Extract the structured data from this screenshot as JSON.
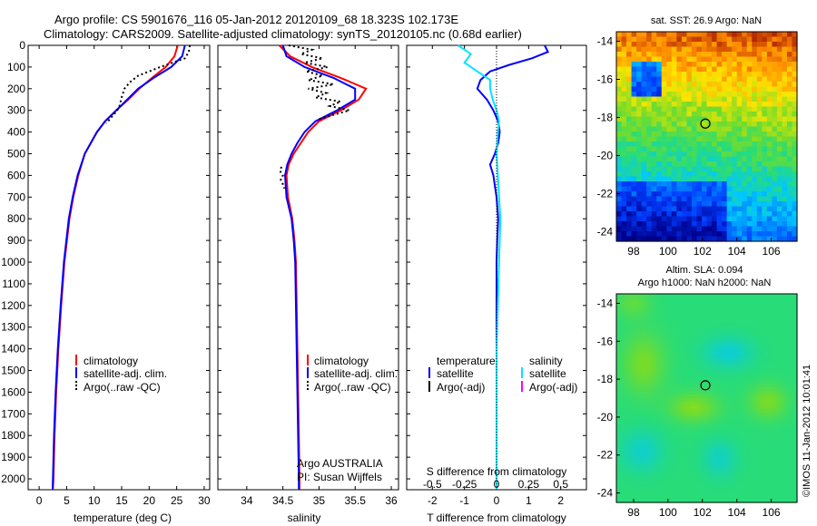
{
  "header": {
    "line1": "Argo profile: CS 5901676_116 05-Jan-2012 20120109_68 18.323S 102.173E",
    "line2": "Climatology: CARS2009. Satellite-adjusted climatology: synTS_20120105.nc (0.68d earlier)"
  },
  "colors": {
    "climatology": "#ff0000",
    "satellite": "#0000ff",
    "argo": "#000000",
    "s_satellite": "#00e5ff",
    "s_argo": "#ff00ff"
  },
  "chart_data": [
    {
      "type": "line",
      "id": "temperature",
      "xlabel": "temperature (deg C)",
      "ylabel": "",
      "xlim": [
        -2,
        31
      ],
      "ylim": [
        2050,
        0
      ],
      "xticks": [
        0,
        5,
        10,
        15,
        20,
        25,
        30
      ],
      "yticks": [
        0,
        100,
        200,
        300,
        400,
        500,
        600,
        700,
        800,
        900,
        1000,
        1100,
        1200,
        1300,
        1400,
        1500,
        1600,
        1700,
        1800,
        1900,
        2000
      ],
      "legend": [
        "climatology",
        "satellite-adj. clim.",
        "Argo(..raw -QC)"
      ],
      "series": [
        {
          "name": "climatology",
          "depth": [
            0,
            50,
            100,
            150,
            200,
            250,
            300,
            350,
            400,
            500,
            600,
            700,
            800,
            1000,
            1200,
            1400,
            1600,
            1800,
            2000,
            2050
          ],
          "values": [
            25.2,
            24.6,
            23.0,
            20.5,
            18.2,
            16.2,
            14.0,
            12.0,
            10.5,
            8.3,
            7.1,
            6.2,
            5.5,
            4.6,
            4.0,
            3.5,
            3.1,
            2.8,
            2.6,
            2.5
          ]
        },
        {
          "name": "satellite-adj. clim.",
          "depth": [
            0,
            50,
            100,
            150,
            200,
            250,
            300,
            350,
            400,
            500,
            600,
            700,
            800,
            1000,
            1200,
            1400,
            1600,
            1800,
            2000,
            2050
          ],
          "values": [
            26.5,
            26.0,
            24.0,
            20.8,
            18.0,
            16.0,
            14.0,
            12.0,
            10.5,
            8.3,
            7.0,
            6.1,
            5.4,
            4.5,
            3.9,
            3.4,
            3.0,
            2.7,
            2.5,
            2.45
          ]
        },
        {
          "name": "Argo(..raw -QC)",
          "depth": [
            0,
            30,
            60,
            100,
            140,
            170,
            200,
            240,
            280,
            300,
            330,
            360
          ],
          "values": [
            27.4,
            27.2,
            26.5,
            22.0,
            18.0,
            16.5,
            15.5,
            15.0,
            14.6,
            14.2,
            13.2,
            12.2
          ]
        }
      ]
    },
    {
      "type": "line",
      "id": "salinity",
      "xlabel": "salinity",
      "xlim": [
        33.6,
        36.1
      ],
      "ylim": [
        2050,
        0
      ],
      "xticks": [
        34,
        34.5,
        35,
        35.5,
        36
      ],
      "legend": [
        "climatology",
        "satellite-adj. clim.",
        "Argo(..raw -QC)"
      ],
      "note1": "Argo AUSTRALIA",
      "note2": "PI: Susan Wijffels",
      "series": [
        {
          "name": "climatology",
          "depth": [
            0,
            50,
            100,
            150,
            200,
            250,
            300,
            350,
            400,
            450,
            500,
            550,
            600,
            700,
            800,
            900,
            1000,
            1200,
            1400,
            1600,
            1800,
            2000,
            2050
          ],
          "values": [
            34.45,
            34.6,
            34.9,
            35.3,
            35.65,
            35.55,
            35.3,
            35.0,
            34.85,
            34.75,
            34.65,
            34.58,
            34.55,
            34.57,
            34.63,
            34.66,
            34.68,
            34.69,
            34.7,
            34.71,
            34.72,
            34.73,
            34.73
          ]
        },
        {
          "name": "satellite-adj. clim.",
          "depth": [
            0,
            50,
            100,
            150,
            200,
            250,
            300,
            350,
            400,
            450,
            500,
            550,
            600,
            700,
            800,
            900,
            1000,
            1200,
            1400,
            1600,
            1800,
            2000,
            2050
          ],
          "values": [
            34.5,
            34.55,
            34.8,
            35.2,
            35.5,
            35.5,
            35.25,
            34.95,
            34.8,
            34.7,
            34.62,
            34.56,
            34.53,
            34.55,
            34.62,
            34.65,
            34.67,
            34.68,
            34.69,
            34.7,
            34.71,
            34.72,
            34.72
          ]
        },
        {
          "name": "Argo(..raw -QC)",
          "depth": [
            0,
            20,
            40,
            60,
            80,
            100,
            120,
            140,
            160,
            180,
            200,
            220,
            240,
            260,
            280,
            300,
            320,
            340
          ],
          "values": [
            34.58,
            34.9,
            34.75,
            35.05,
            34.8,
            35.12,
            34.82,
            35.05,
            34.85,
            35.2,
            34.85,
            35.1,
            34.95,
            35.3,
            35.15,
            35.42,
            35.2,
            35.0
          ]
        },
        {
          "name": "Argo(..raw -QC) deep",
          "depth": [
            560,
            580,
            600,
            620,
            640,
            660
          ],
          "values": [
            34.48,
            34.46,
            34.5,
            34.47,
            34.5,
            34.52
          ]
        }
      ]
    },
    {
      "type": "line",
      "id": "difference",
      "xlabel": "T difference from climatology",
      "xlabel_top": "S difference from climatology",
      "xlim": [
        -2.8,
        2.8
      ],
      "ylim": [
        2050,
        0
      ],
      "xticks": [
        -2,
        -1,
        0,
        1,
        2
      ],
      "sticks_labels": [
        "-0.5",
        "-0.25",
        "0",
        "0.25",
        "0.5"
      ],
      "sticks": [
        -0.5,
        -0.25,
        0,
        0.25,
        0.5
      ],
      "s_scale": 4,
      "legend_temperature": "temperature",
      "legend_salinity": "salinity",
      "legend_items": [
        "satellite",
        "Argo(-adj)",
        "satellite",
        "Argo(-adj)"
      ],
      "series": [
        {
          "name": "T satellite",
          "depth": [
            0,
            30,
            60,
            90,
            120,
            160,
            200,
            250,
            300,
            350,
            400,
            450,
            500,
            550,
            600,
            650,
            700,
            800,
            900,
            1000,
            1200,
            1400,
            1600,
            1800,
            2000,
            2050
          ],
          "values": [
            1.5,
            1.6,
            1.1,
            0.4,
            -0.2,
            -0.5,
            -0.6,
            -0.3,
            -0.1,
            0.05,
            0.1,
            0.05,
            -0.05,
            -0.2,
            -0.1,
            -0.05,
            0.0,
            0.05,
            0.02,
            0.0,
            0.0,
            0.0,
            0.0,
            0.0,
            0.0,
            0.0
          ]
        },
        {
          "name": "S satellite",
          "depth": [
            0,
            40,
            80,
            120,
            160,
            200,
            250,
            300,
            350,
            400,
            500,
            600,
            700,
            800,
            1000,
            1200,
            1400,
            1600,
            1800,
            2000,
            2050
          ],
          "values": [
            -0.3,
            -0.2,
            -0.25,
            -0.15,
            -0.05,
            -0.05,
            -0.03,
            0.0,
            0.02,
            0.01,
            0.0,
            0.01,
            0.02,
            0.03,
            0.02,
            0.01,
            0.0,
            0.0,
            0.0,
            0.0,
            0.0
          ]
        }
      ]
    },
    {
      "type": "heatmap",
      "id": "sst",
      "title": "sat. SST: 26.9  Argo: NaN",
      "xlim": [
        97,
        107.5
      ],
      "ylim": [
        -24.5,
        -13.5
      ],
      "xticks": [
        98,
        100,
        102,
        104,
        106
      ],
      "yticks": [
        -14,
        -16,
        -18,
        -20,
        -22,
        -24
      ],
      "marker": [
        102.173,
        -18.323
      ]
    },
    {
      "type": "heatmap",
      "id": "sla",
      "title1": "Altim. SLA: 0.094",
      "title2": "Argo h1000: NaN h2000: NaN",
      "xlim": [
        97,
        107.5
      ],
      "ylim": [
        -24.5,
        -13.5
      ],
      "xticks": [
        98,
        100,
        102,
        104,
        106
      ],
      "yticks": [
        -14,
        -16,
        -18,
        -20,
        -22,
        -24
      ],
      "marker": [
        102.173,
        -18.323
      ]
    }
  ],
  "footer": {
    "imos": "©IMOS 11-Jan-2012 10:01:41"
  }
}
